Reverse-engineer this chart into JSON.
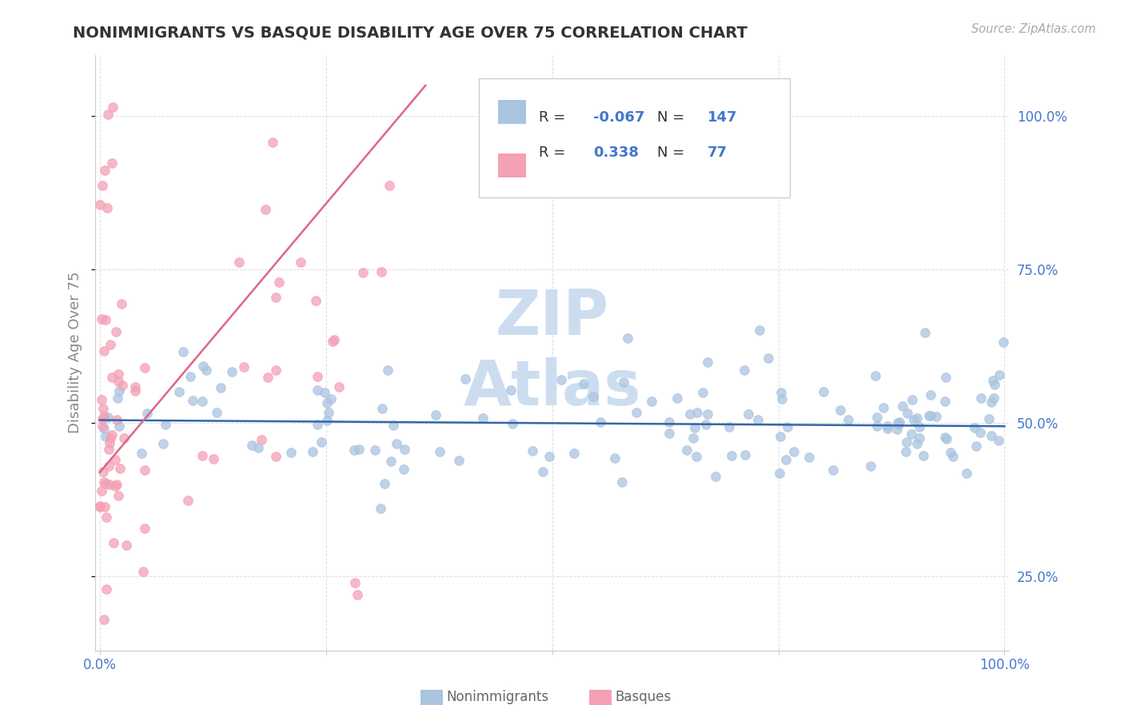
{
  "title": "NONIMMIGRANTS VS BASQUE DISABILITY AGE OVER 75 CORRELATION CHART",
  "source_text": "Source: ZipAtlas.com",
  "ylabel": "Disability Age Over 75",
  "legend_label1": "Nonimmigrants",
  "legend_label2": "Basques",
  "blue_R": -0.067,
  "blue_N": 147,
  "pink_R": 0.338,
  "pink_N": 77,
  "blue_color": "#aac4e0",
  "pink_color": "#f4a0b5",
  "blue_line_color": "#3366aa",
  "pink_line_color": "#dd6688",
  "watermark_color": "#ccddf0",
  "background_color": "#ffffff",
  "grid_color": "#dddddd",
  "title_color": "#333333",
  "tick_color": "#4477cc",
  "ylabel_color": "#888888",
  "source_color": "#aaaaaa",
  "legend_text_color": "#333333",
  "legend_R_color": "#4477cc",
  "legend_N_color": "#4477cc"
}
